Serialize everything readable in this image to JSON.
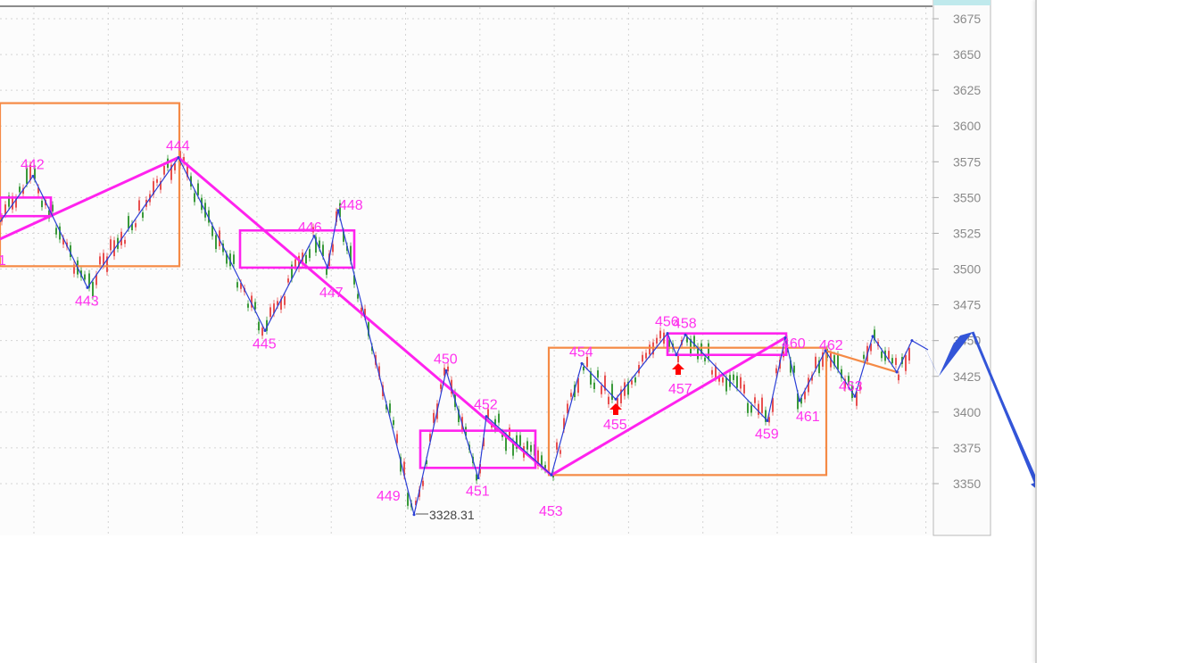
{
  "chart_data": {
    "type": "candlestick-with-annotations",
    "title": "",
    "xlabel": "",
    "ylabel": "",
    "ylim": [
      3300,
      3690
    ],
    "y_ticks": [
      3675,
      3650,
      3625,
      3600,
      3575,
      3550,
      3525,
      3500,
      3475,
      3450,
      3425,
      3400,
      3375,
      3350
    ],
    "grid": true,
    "axis_position": "right",
    "colors": {
      "stroke": "#2b3fd6",
      "segment": "#ff22ee",
      "pivot_orange": "#f58a45",
      "pivot_magenta": "#ff22ee",
      "label": "#ff33ee",
      "up_candle": "#e85050",
      "down_candle": "#3a9a3a",
      "signal_arrow": "#ff0000",
      "projection": "#3355d8"
    },
    "strokes": [
      {
        "label": "",
        "price": 3533
      },
      {
        "label": "442",
        "price": 3565
      },
      {
        "label": "443",
        "price": 3487
      },
      {
        "label": "444",
        "price": 3578
      },
      {
        "label": "445",
        "price": 3457
      },
      {
        "label": "446",
        "price": 3523
      },
      {
        "label": "447",
        "price": 3501
      },
      {
        "label": "448",
        "price": 3541
      },
      {
        "label": "449",
        "price": 3328.31
      },
      {
        "label": "450",
        "price": 3429
      },
      {
        "label": "451",
        "price": 3354
      },
      {
        "label": "452",
        "price": 3397
      },
      {
        "label": "453",
        "price": 3356
      },
      {
        "label": "454",
        "price": 3434
      },
      {
        "label": "455",
        "price": 3409
      },
      {
        "label": "456",
        "price": 3455
      },
      {
        "label": "457",
        "price": 3440
      },
      {
        "label": "458",
        "price": 3454
      },
      {
        "label": "459",
        "price": 3394
      },
      {
        "label": "460",
        "price": 3452
      },
      {
        "label": "461",
        "price": 3408
      },
      {
        "label": "462",
        "price": 3443
      },
      {
        "label": "463",
        "price": 3411
      },
      {
        "label": "",
        "price": 3453
      },
      {
        "label": "",
        "price": 3428
      },
      {
        "label": "",
        "price": 3450
      }
    ],
    "low_annotation": "3328.31",
    "partial_label_left": "1",
    "segments": [
      {
        "from_price": 3521,
        "to": "444",
        "to_price": 3578
      },
      {
        "from": "444",
        "to": "453"
      },
      {
        "from": "453",
        "to": "460"
      },
      {
        "from": "462",
        "to_price": 3428,
        "color": "orange"
      }
    ],
    "pivots": [
      {
        "color": "orange",
        "high": 3616,
        "low": 3502
      },
      {
        "color": "magenta",
        "high": 3550,
        "low": 3537
      },
      {
        "color": "magenta",
        "high": 3527,
        "low": 3501
      },
      {
        "color": "magenta",
        "high": 3387,
        "low": 3361
      },
      {
        "color": "orange",
        "high": 3445,
        "low": 3356
      },
      {
        "color": "magenta",
        "high": 3455,
        "low": 3440
      }
    ],
    "buy_signals": [
      "455",
      "457"
    ],
    "projection": [
      3450,
      3425,
      3456,
      3342
    ]
  }
}
